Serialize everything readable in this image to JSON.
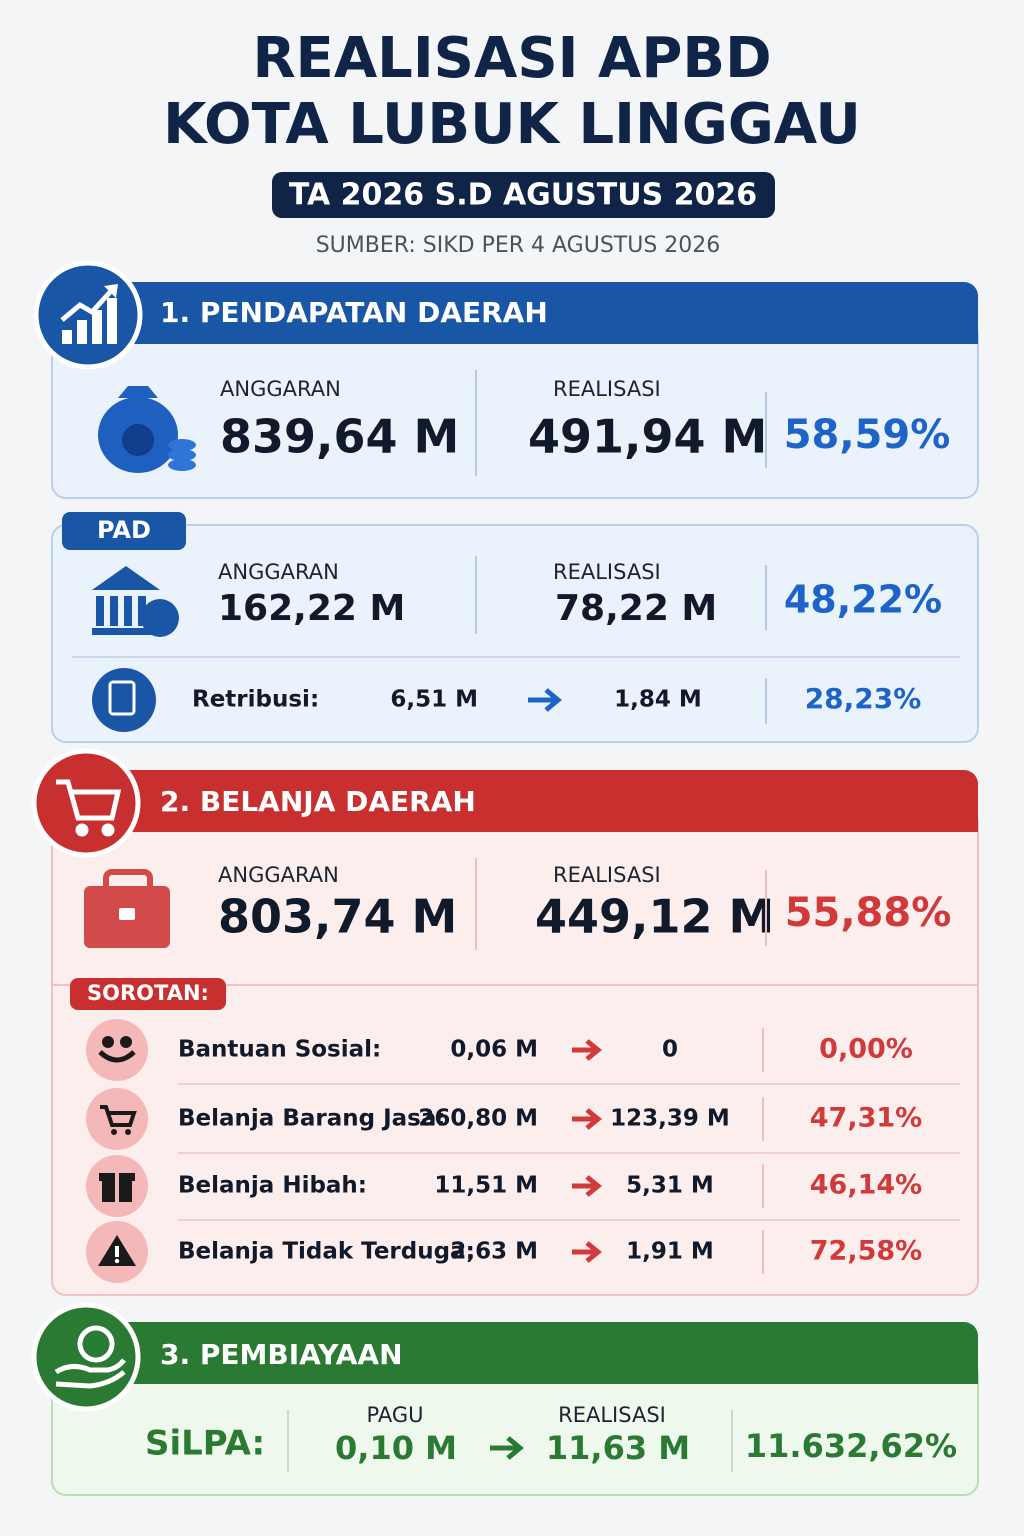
{
  "header": {
    "title_line1": "REALISASI APBD",
    "title_line2": "KOTA LUBUK LINGGAU",
    "period": "TA 2026 S.D AGUSTUS 2026",
    "source": "SUMBER: SIKD PER 4 AGUSTUS 2026"
  },
  "pendapatan": {
    "title": "1. PENDAPATAN DAERAH",
    "anggaran_label": "ANGGARAN",
    "anggaran": "839,64 M",
    "realisasi_label": "REALISASI",
    "realisasi": "491,94 M",
    "persen": "58,59%"
  },
  "pad": {
    "tag": "PAD",
    "anggaran_label": "ANGGARAN",
    "anggaran": "162,22 M",
    "realisasi_label": "REALISASI",
    "realisasi": "78,22 M",
    "persen": "48,22%",
    "retribusi": {
      "label": "Retribusi:",
      "anggaran": "6,51 M",
      "realisasi": "1,84 M",
      "persen": "28,23%"
    }
  },
  "belanja": {
    "title": "2. BELANJA DAERAH",
    "anggaran_label": "ANGGARAN",
    "anggaran": "803,74 M",
    "realisasi_label": "REALISASI",
    "realisasi": "449,12 M",
    "persen": "55,88%",
    "sorotan_label": "SOROTAN:",
    "rows": [
      {
        "label": "Bantuan Sosial:",
        "anggaran": "0,06 M",
        "realisasi": "0",
        "persen": "0,00%"
      },
      {
        "label": "Belanja Barang Jasa:",
        "anggaran": "260,80 M",
        "realisasi": "123,39 M",
        "persen": "47,31%"
      },
      {
        "label": "Belanja Hibah:",
        "anggaran": "11,51 M",
        "realisasi": "5,31 M",
        "persen": "46,14%"
      },
      {
        "label": "Belanja Tidak Terduga:",
        "anggaran": "2,63 M",
        "realisasi": "1,91 M",
        "persen": "72,58%"
      }
    ]
  },
  "pembiayaan": {
    "title": "3. PEMBIAYAAN",
    "label": "SiLPA:",
    "pagu_label": "PAGU",
    "pagu": "0,10 M",
    "realisasi_label": "REALISASI",
    "realisasi": "11,63 M",
    "persen": "11.632,62%"
  }
}
